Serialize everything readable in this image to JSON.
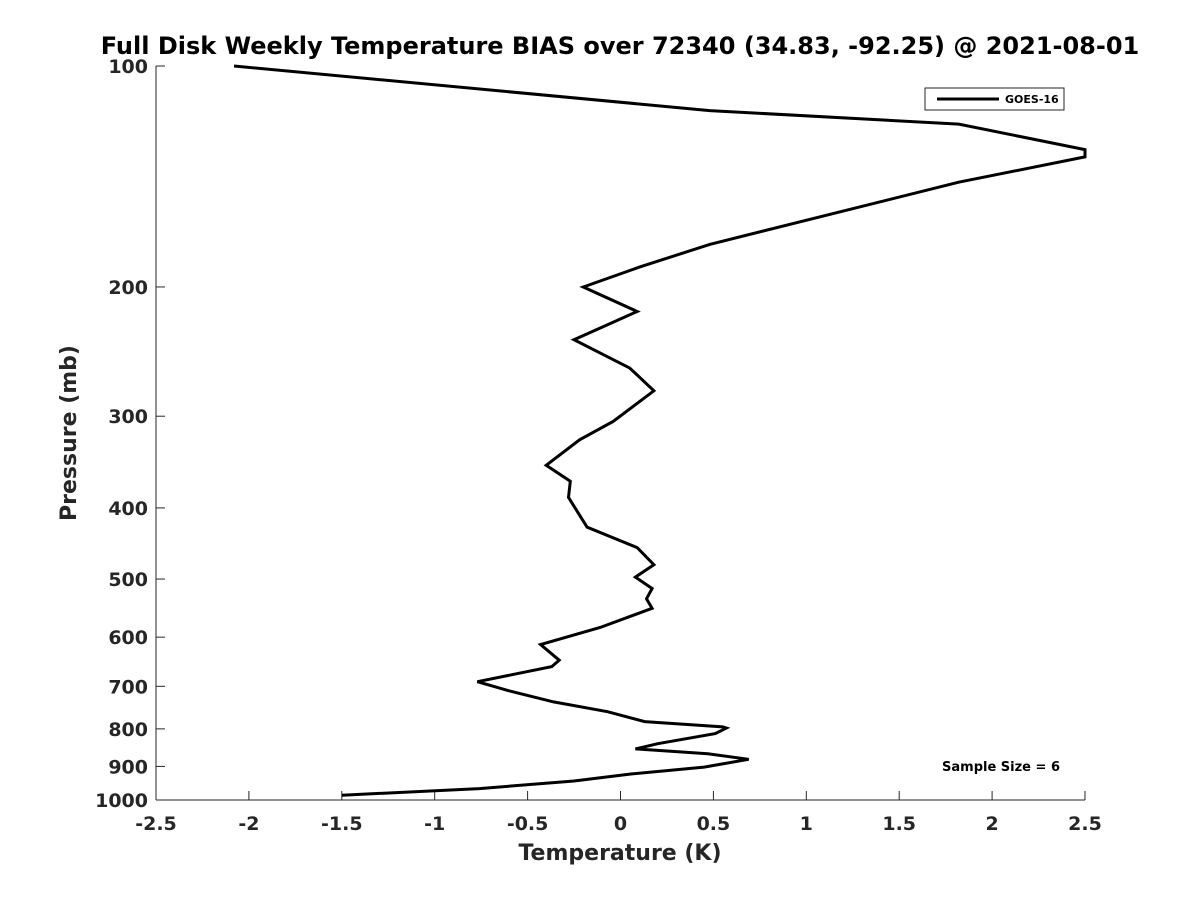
{
  "chart_data": {
    "type": "line",
    "title": "Full Disk Weekly Temperature BIAS over 72340 (34.83, -92.25) @ 2021-08-01",
    "xlabel": "Temperature (K)",
    "ylabel": "Pressure (mb)",
    "xlim": [
      -2.5,
      2.5
    ],
    "ylim": [
      1000,
      100
    ],
    "y_scale": "log",
    "y_reversed": true,
    "grid": false,
    "x_ticks": [
      -2.5,
      -2,
      -1.5,
      -1,
      -0.5,
      0,
      0.5,
      1,
      1.5,
      2,
      2.5
    ],
    "x_tick_labels": [
      "-2.5",
      "-2",
      "-1.5",
      "-1",
      "-0.5",
      "0",
      "0.5",
      "1",
      "1.5",
      "2",
      "2.5"
    ],
    "y_ticks": [
      100,
      200,
      300,
      400,
      500,
      600,
      700,
      800,
      900,
      1000
    ],
    "y_tick_labels": [
      "100",
      "200",
      "300",
      "400",
      "500",
      "600",
      "700",
      "800",
      "900",
      "1000"
    ],
    "legend_position": "top-right",
    "series": [
      {
        "name": "GOES-16",
        "color": "#000000",
        "points": [
          [
            -2.08,
            100
          ],
          [
            0.48,
            115
          ],
          [
            1.82,
            120
          ],
          [
            2.5,
            130
          ],
          [
            2.5,
            133
          ],
          [
            1.82,
            144
          ],
          [
            0.48,
            175
          ],
          [
            0.1,
            188
          ],
          [
            -0.2,
            200
          ],
          [
            0.09,
            216
          ],
          [
            -0.25,
            236
          ],
          [
            0.05,
            258
          ],
          [
            0.18,
            277
          ],
          [
            -0.04,
            305
          ],
          [
            -0.22,
            323
          ],
          [
            -0.4,
            350
          ],
          [
            -0.27,
            368
          ],
          [
            -0.28,
            387
          ],
          [
            -0.18,
            425
          ],
          [
            0.09,
            453
          ],
          [
            0.18,
            478
          ],
          [
            0.08,
            497
          ],
          [
            0.17,
            515
          ],
          [
            0.14,
            532
          ],
          [
            0.17,
            548
          ],
          [
            -0.11,
            582
          ],
          [
            -0.43,
            614
          ],
          [
            -0.33,
            645
          ],
          [
            -0.37,
            658
          ],
          [
            -0.77,
            690
          ],
          [
            -0.6,
            710
          ],
          [
            -0.36,
            735
          ],
          [
            -0.07,
            758
          ],
          [
            0.13,
            782
          ],
          [
            0.55,
            795
          ],
          [
            0.57,
            798
          ],
          [
            0.51,
            812
          ],
          [
            0.2,
            838
          ],
          [
            0.08,
            852
          ],
          [
            0.47,
            865
          ],
          [
            0.69,
            880
          ],
          [
            0.45,
            902
          ],
          [
            0.05,
            922
          ],
          [
            -0.25,
            942
          ],
          [
            -0.76,
            965
          ],
          [
            -1.5,
            985
          ]
        ]
      }
    ],
    "annotations": [
      {
        "text": "Sample Size = 6",
        "position": "bottom-right"
      }
    ]
  }
}
